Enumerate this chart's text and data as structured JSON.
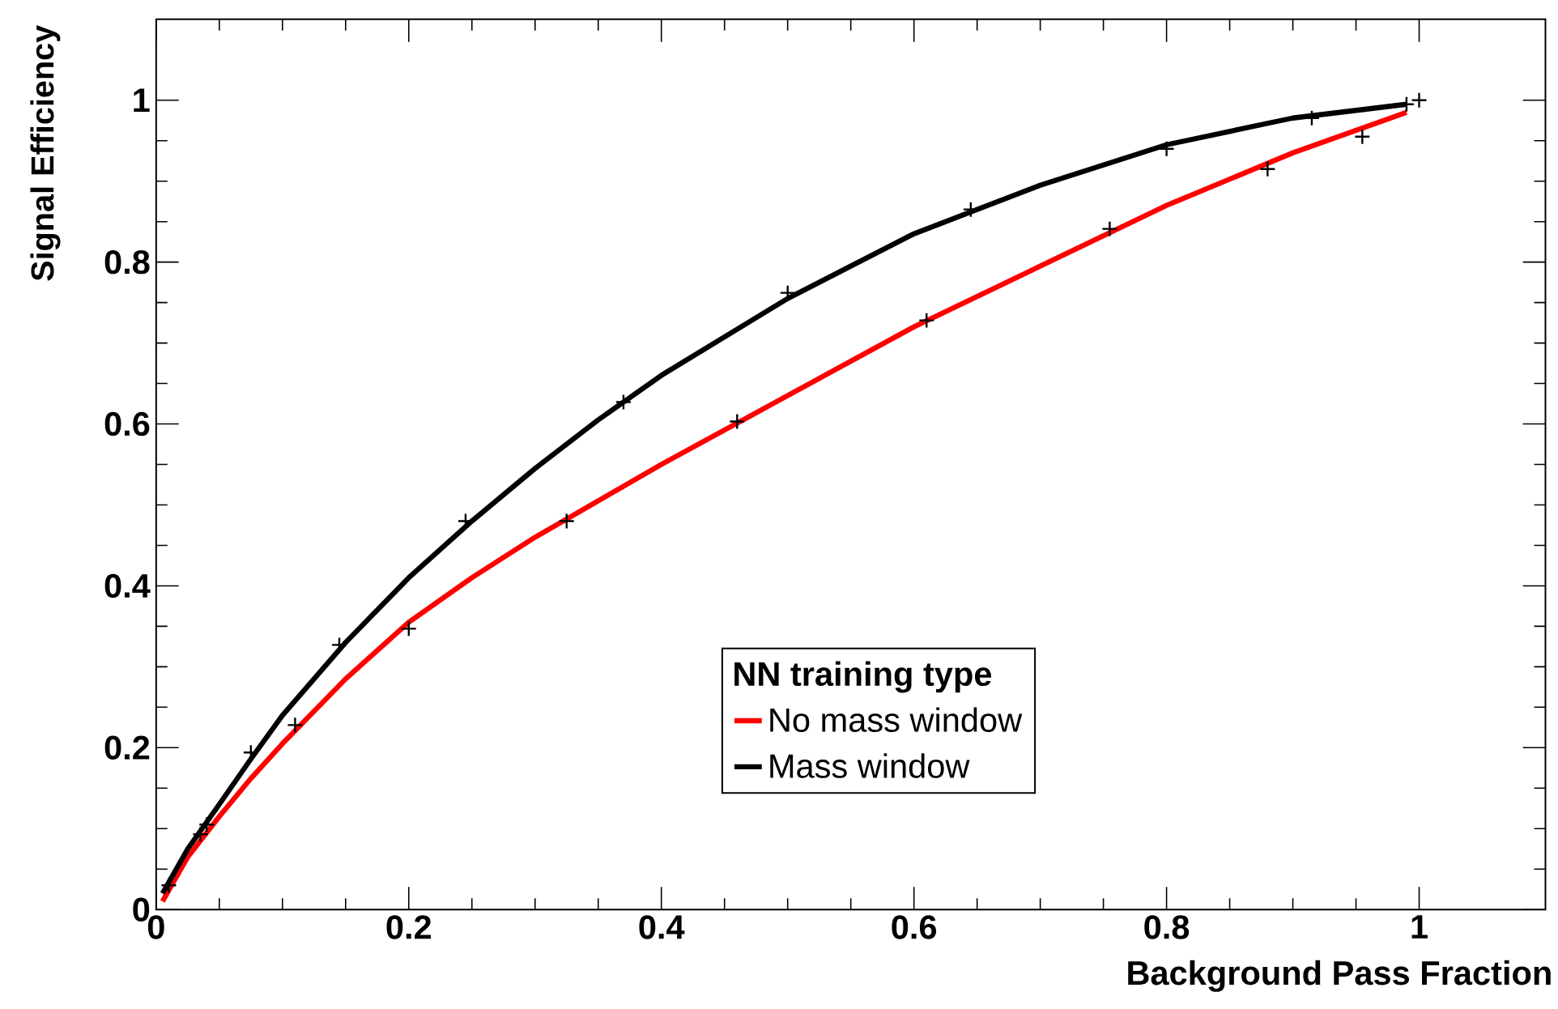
{
  "chart_data": {
    "type": "line",
    "xlabel": "Background Pass Fraction",
    "ylabel": "Signal Efficiency",
    "legend_title": "NN training type",
    "xlim": [
      0,
      1.1
    ],
    "ylim": [
      0,
      1.1
    ],
    "xticks": [
      0,
      0.2,
      0.4,
      0.6,
      0.8,
      1
    ],
    "yticks": [
      0,
      0.2,
      0.4,
      0.6,
      0.8,
      1
    ],
    "grid": false,
    "legend": "bottom",
    "series": [
      {
        "name": "No mass window",
        "color": "#ff0000",
        "x": [
          0.005,
          0.025,
          0.05,
          0.075,
          0.1,
          0.15,
          0.2,
          0.25,
          0.3,
          0.35,
          0.4,
          0.5,
          0.6,
          0.7,
          0.8,
          0.9,
          0.99
        ],
        "values": [
          0.01,
          0.065,
          0.115,
          0.162,
          0.205,
          0.285,
          0.355,
          0.41,
          0.46,
          0.505,
          0.55,
          0.635,
          0.72,
          0.795,
          0.87,
          0.935,
          0.985
        ]
      },
      {
        "name": "Mass window",
        "color": "#000000",
        "x": [
          0.005,
          0.025,
          0.05,
          0.075,
          0.1,
          0.15,
          0.2,
          0.25,
          0.3,
          0.35,
          0.4,
          0.5,
          0.6,
          0.7,
          0.8,
          0.9,
          0.99
        ],
        "values": [
          0.02,
          0.075,
          0.13,
          0.186,
          0.24,
          0.33,
          0.41,
          0.48,
          0.545,
          0.605,
          0.66,
          0.755,
          0.835,
          0.895,
          0.945,
          0.978,
          0.995
        ]
      },
      {
        "type": "scatter",
        "marker": "cross",
        "color": "#000000",
        "x": [
          0.01,
          0.035,
          0.04,
          0.075,
          0.11,
          0.145,
          0.2,
          0.245,
          0.325,
          0.37,
          0.46,
          0.5,
          0.61,
          0.645,
          0.755,
          0.8,
          0.88,
          0.915,
          0.955,
          0.99,
          1.0
        ],
        "values": [
          0.03,
          0.093,
          0.105,
          0.194,
          0.228,
          0.327,
          0.347,
          0.48,
          0.48,
          0.627,
          0.603,
          0.762,
          0.728,
          0.865,
          0.841,
          0.94,
          0.915,
          0.978,
          0.955,
          0.995,
          1.0
        ]
      }
    ]
  }
}
